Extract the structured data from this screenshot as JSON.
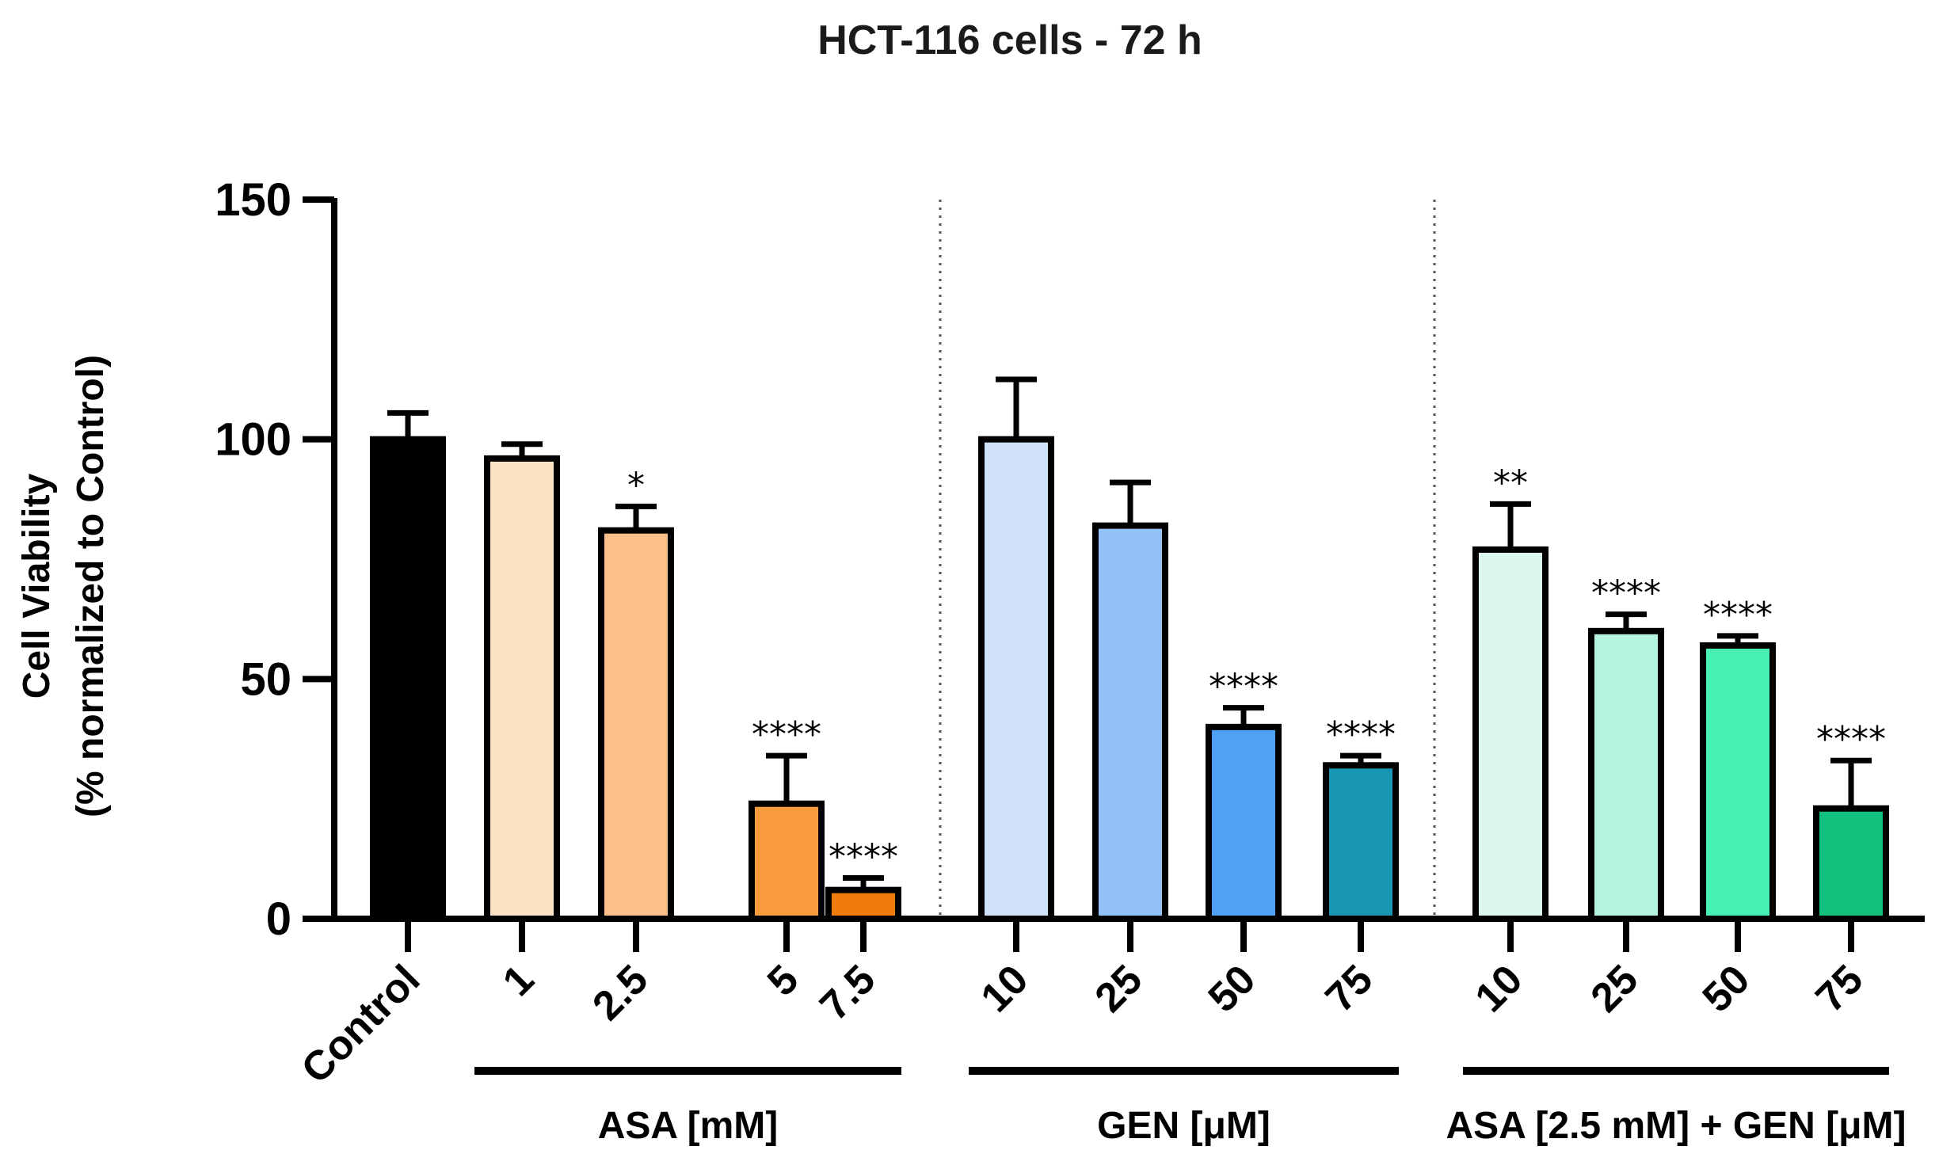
{
  "chart_data": {
    "type": "bar",
    "title": "HCT-116 cells - 72 h",
    "ylabel_line1": "Cell Viability",
    "ylabel_line2": "(% normalized to Control)",
    "ylim": [
      0,
      150
    ],
    "yticks": [
      "0",
      "50",
      "100",
      "150"
    ],
    "categories": [
      "Control",
      "1",
      "2.5",
      "5",
      "7.5",
      "10",
      "25",
      "50",
      "75",
      "10",
      "25",
      "50",
      "75"
    ],
    "values": [
      100,
      96,
      81,
      24,
      6,
      100,
      82,
      40,
      32,
      77,
      60,
      57,
      23
    ],
    "errors": [
      5.5,
      3,
      5,
      10,
      2.5,
      12.5,
      9,
      4,
      2,
      9.5,
      3.5,
      2,
      10
    ],
    "significance": [
      "",
      "",
      "*",
      "****",
      "****",
      "",
      "",
      "****",
      "****",
      "**",
      "****",
      "****",
      "****"
    ],
    "colors": [
      "#000000",
      "#fde3c5",
      "#fbc08a",
      "#f89b3d",
      "#f07a0c",
      "#cfe2f8",
      "#93c2f7",
      "#4fa1f6",
      "#1896b4",
      "#dcf8ed",
      "#b3f5de",
      "#48efb2",
      "#12c17e"
    ],
    "groups": [
      {
        "label": "ASA [mM]",
        "first_index": 1,
        "last_index": 4
      },
      {
        "label": "GEN [μM]",
        "first_index": 5,
        "last_index": 8
      },
      {
        "label": "ASA [2.5 mM] + GEN [μM]",
        "first_index": 9,
        "last_index": 12
      }
    ]
  }
}
